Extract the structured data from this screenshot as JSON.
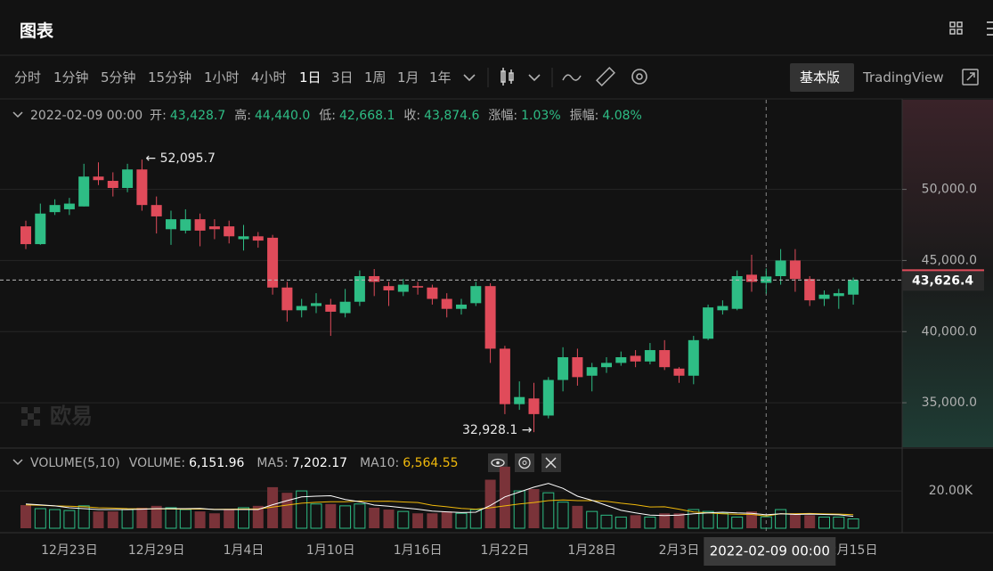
{
  "header": {
    "title": "图表"
  },
  "toolbar": {
    "intervals": [
      "分时",
      "1分钟",
      "5分钟",
      "15分钟",
      "1小时",
      "4小时",
      "1日",
      "3日",
      "1周",
      "1月",
      "1年"
    ],
    "selected": "1日",
    "basic": "基本版",
    "tradingview": "TradingView"
  },
  "ohlc_info": {
    "date": "2022-02-09 00:00",
    "items": [
      {
        "label": "开:",
        "value": "43,428.7"
      },
      {
        "label": "高:",
        "value": "44,440.0"
      },
      {
        "label": "低:",
        "value": "42,668.1"
      },
      {
        "label": "收:",
        "value": "43,874.6"
      },
      {
        "label": "涨幅:",
        "value": "1.03%"
      },
      {
        "label": "振幅:",
        "value": "4.08%"
      }
    ]
  },
  "watermark": "欧易",
  "chart_data": {
    "type": "candlestick",
    "categories": [
      null,
      null,
      null,
      "12月23日",
      null,
      null,
      null,
      null,
      null,
      "12月29日",
      null,
      null,
      null,
      null,
      null,
      "1月4日",
      null,
      null,
      null,
      null,
      null,
      "1月10日",
      null,
      null,
      null,
      null,
      null,
      "1月16日",
      null,
      null,
      null,
      null,
      null,
      "1月22日",
      null,
      null,
      null,
      null,
      null,
      "1月28日",
      null,
      null,
      null,
      null,
      null,
      "2月3日",
      null,
      null,
      null,
      null,
      null,
      null,
      null,
      null,
      null,
      null,
      null,
      "2月15日"
    ],
    "open": [
      47400,
      46150,
      48400,
      48600,
      48800,
      50900,
      50600,
      50100,
      51400,
      48900,
      47200,
      47100,
      47900,
      47400,
      47400,
      46500,
      46700,
      46600,
      43100,
      41500,
      41800,
      41900,
      41300,
      42100,
      43900,
      43200,
      42800,
      43200,
      43100,
      42300,
      41600,
      42000,
      43200,
      38800,
      34900,
      35300,
      34100,
      36600,
      38200,
      36900,
      37500,
      37800,
      38300,
      37900,
      38700,
      37400,
      36900,
      39500,
      41500,
      41600,
      44000,
      43428.7,
      43900,
      45000,
      43700,
      42300,
      42500,
      42600
    ],
    "high": [
      47800,
      49000,
      49300,
      49400,
      51800,
      51900,
      51200,
      51800,
      52095.7,
      49500,
      48500,
      48600,
      48300,
      47900,
      47800,
      47500,
      47000,
      46800,
      43500,
      42300,
      42700,
      42300,
      43000,
      44300,
      44400,
      43500,
      43700,
      43500,
      43300,
      42700,
      42300,
      43500,
      43400,
      39000,
      36500,
      36400,
      36800,
      38900,
      38800,
      37800,
      38200,
      38600,
      38700,
      39200,
      39400,
      37500,
      39700,
      41900,
      42200,
      44300,
      45400,
      44440,
      45800,
      45800,
      43900,
      42900,
      43000,
      43800
    ],
    "low": [
      45800,
      46100,
      48200,
      48200,
      48800,
      50300,
      49500,
      49800,
      48500,
      46900,
      46100,
      46900,
      46000,
      46500,
      46200,
      45700,
      45900,
      42600,
      40700,
      41000,
      41300,
      39700,
      41000,
      41800,
      42500,
      41800,
      42500,
      42600,
      41900,
      41000,
      41200,
      41800,
      37800,
      34200,
      34500,
      32928.1,
      33900,
      35800,
      36200,
      35800,
      37100,
      37600,
      37500,
      37700,
      37300,
      36400,
      36300,
      39400,
      41200,
      41500,
      42800,
      42668.1,
      43300,
      42800,
      41800,
      41800,
      41600,
      41900
    ],
    "close": [
      46150,
      48300,
      48900,
      49000,
      50900,
      50650,
      50100,
      51400,
      48900,
      48100,
      47900,
      47900,
      47100,
      47200,
      46700,
      46700,
      46400,
      43100,
      41500,
      41800,
      42000,
      41400,
      42100,
      43900,
      43500,
      42900,
      43300,
      43100,
      42300,
      41600,
      41900,
      43200,
      38800,
      34900,
      35400,
      34200,
      36600,
      38200,
      36800,
      37500,
      37800,
      38200,
      37900,
      38700,
      37500,
      36900,
      39400,
      41700,
      41800,
      43900,
      43500,
      43874.6,
      45000,
      43700,
      42200,
      42600,
      42700,
      43626.4
    ],
    "colors": {
      "up": "#2ebd85",
      "down": "#e04b5a"
    },
    "ylim": [
      32000,
      56300
    ],
    "yticks": [
      {
        "value": 35000,
        "label": "35,000.0"
      },
      {
        "value": 40000,
        "label": "40,000.0"
      },
      {
        "value": 45000,
        "label": "45,000.0"
      },
      {
        "value": 50000,
        "label": "50,000.0"
      }
    ],
    "grid": true,
    "last_price_label": "43,626.4",
    "high_label": "← 52,095.7",
    "low_label": "32,928.1 →",
    "crosshair_label": "2022-02-09 00:00",
    "volume": {
      "title": "VOLUME(5,10)",
      "legend": [
        {
          "label": "VOLUME:",
          "value": "6,151.96",
          "color": "#ffffff"
        },
        {
          "label": "MA5:",
          "value": "7,202.17",
          "color": "#ffffff"
        },
        {
          "label": "MA10:",
          "value": "6,564.55",
          "color": "#f0b90b"
        }
      ],
      "values": [
        12400,
        10500,
        10000,
        9500,
        12000,
        9000,
        9000,
        10000,
        11000,
        12000,
        11000,
        10000,
        9000,
        8000,
        10000,
        11000,
        12000,
        22000,
        19000,
        20000,
        13000,
        13000,
        12000,
        13000,
        11000,
        10000,
        9000,
        8000,
        8000,
        9000,
        8000,
        10000,
        26000,
        33000,
        20000,
        21000,
        19000,
        14000,
        12000,
        9000,
        7000,
        6000,
        7000,
        6000,
        8000,
        8000,
        10000,
        9000,
        8000,
        6000,
        9000,
        6151.96,
        10000,
        8000,
        7000,
        6000,
        6000,
        5000
      ],
      "ma5": [
        13000,
        12500,
        12000,
        11000,
        10500,
        10000,
        10000,
        10000,
        10200,
        10500,
        10500,
        10500,
        10600,
        10000,
        10000,
        10000,
        10000,
        12600,
        14800,
        16800,
        17200,
        17400,
        15400,
        14200,
        12400,
        11800,
        11000,
        10200,
        9200,
        8800,
        8400,
        8600,
        12200,
        16800,
        19400,
        22000,
        24000,
        21400,
        17200,
        15000,
        12200,
        9600,
        8200,
        7000,
        6800,
        7000,
        7800,
        8200,
        8600,
        8200,
        8000,
        7202.17,
        7800,
        7400,
        7600,
        7400,
        7200,
        6400
      ],
      "ma10": [
        12500,
        12300,
        12000,
        11800,
        11500,
        11000,
        10800,
        10500,
        10400,
        10400,
        10300,
        10200,
        10300,
        10100,
        10200,
        10300,
        10300,
        11300,
        12400,
        13400,
        13900,
        14200,
        14200,
        14600,
        14400,
        14500,
        14100,
        13800,
        12300,
        11500,
        10600,
        10200,
        11000,
        12000,
        13000,
        13800,
        14800,
        15200,
        14800,
        14800,
        14400,
        13400,
        12600,
        11400,
        11500,
        10200,
        8700,
        8200,
        7800,
        7500,
        7400,
        6564.55,
        7800,
        7800,
        7900,
        7700,
        7600,
        7300
      ],
      "ylim": [
        0,
        42000
      ],
      "yticks": [
        {
          "value": 20000,
          "label": "20.00K"
        }
      ]
    }
  }
}
